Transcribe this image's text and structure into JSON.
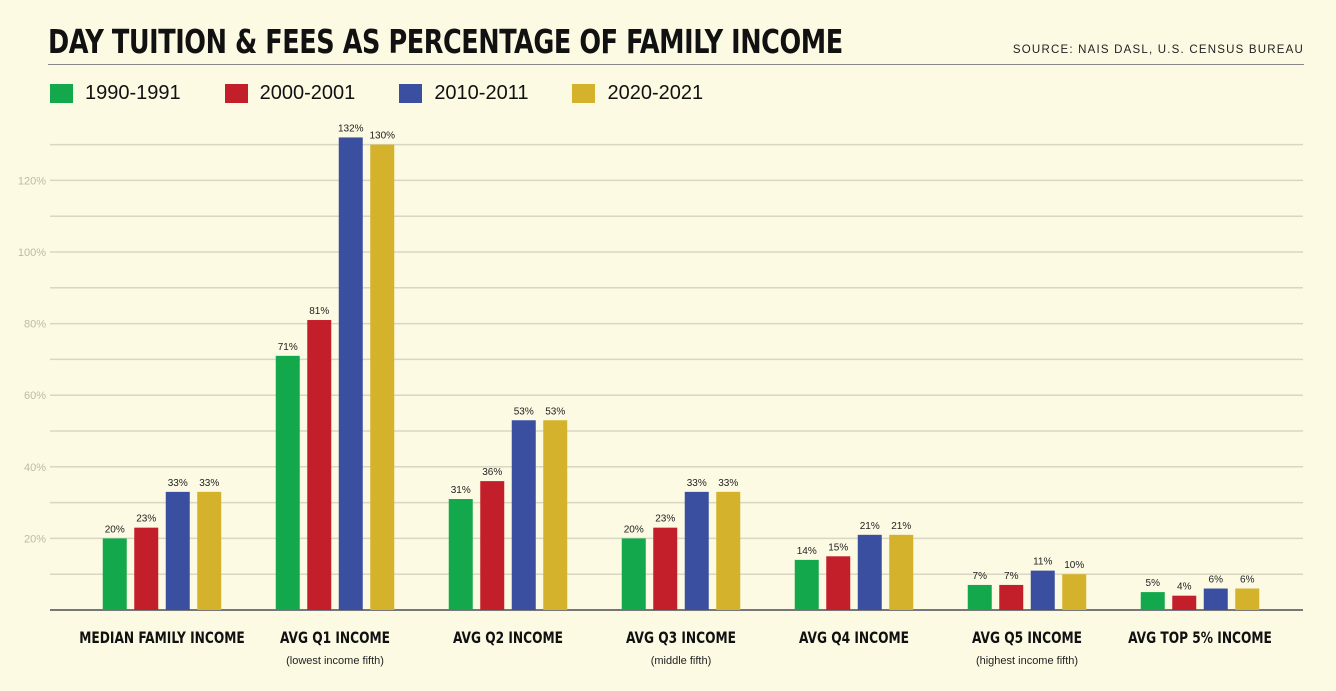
{
  "title": "DAY TUITION & FEES AS PERCENTAGE OF FAMILY INCOME",
  "source": "SOURCE: NAIS DASL, U.S. CENSUS BUREAU",
  "chart_data": {
    "type": "bar",
    "categories": [
      "MEDIAN FAMILY INCOME",
      "AVG Q1 INCOME",
      "AVG Q2 INCOME",
      "AVG Q3 INCOME",
      "AVG Q4 INCOME",
      "AVG Q5 INCOME",
      "AVG TOP 5% INCOME"
    ],
    "category_subtitles": [
      "",
      "(lowest income fifth)",
      "",
      "(middle fifth)",
      "",
      "(highest income fifth)",
      ""
    ],
    "series": [
      {
        "name": "1990-1991",
        "color": "#13a84b",
        "values": [
          20,
          71,
          31,
          20,
          14,
          7,
          5
        ]
      },
      {
        "name": "2000-2001",
        "color": "#c31f2b",
        "values": [
          23,
          81,
          36,
          23,
          15,
          7,
          4
        ]
      },
      {
        "name": "2010-2011",
        "color": "#3a4f9f",
        "values": [
          33,
          132,
          53,
          33,
          21,
          11,
          6
        ]
      },
      {
        "name": "2020-2021",
        "color": "#d4b22b",
        "values": [
          33,
          130,
          53,
          33,
          21,
          10,
          6
        ]
      }
    ],
    "value_labels": [
      [
        "20%",
        "71%",
        "31%",
        "20%",
        "14%",
        "7%",
        "5%"
      ],
      [
        "23%",
        "81%",
        "36%",
        "23%",
        "15%",
        "7%",
        "4%"
      ],
      [
        "33%",
        "132%",
        "53%",
        "33%",
        "21%",
        "11%",
        "6%"
      ],
      [
        "33%",
        "130%",
        "53%",
        "33%",
        "21%",
        "10%",
        "6%"
      ]
    ],
    "yticks": [
      20,
      40,
      60,
      80,
      100,
      120
    ],
    "ytick_labels": [
      "20%",
      "40%",
      "60%",
      "80%",
      "100%",
      "120%"
    ],
    "ylim": [
      0,
      130
    ],
    "grid": true,
    "gridline_step": 10,
    "legend_position": "top-left",
    "xlabel": "",
    "ylabel": ""
  }
}
